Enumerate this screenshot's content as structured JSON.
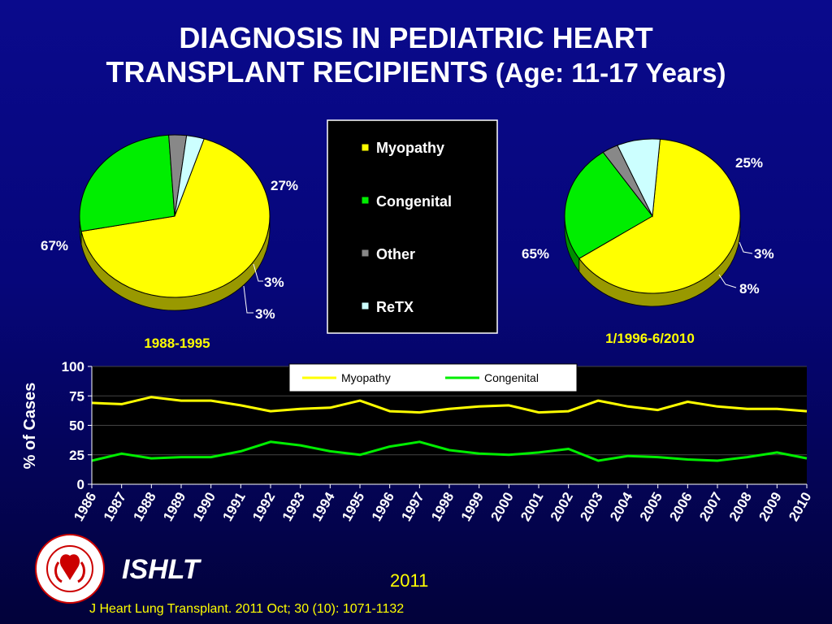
{
  "title_line1": "DIAGNOSIS IN PEDIATRIC HEART",
  "title_line2_main": "TRANSPLANT RECIPIENTS",
  "title_line2_sub": " (Age: 11-17 Years)",
  "chart_data": [
    {
      "type": "pie",
      "title": "1988-1995",
      "slices": [
        {
          "name": "Myopathy",
          "value": 67,
          "label": "67%"
        },
        {
          "name": "Congenital",
          "value": 27,
          "label": "27%"
        },
        {
          "name": "Other",
          "value": 3,
          "label": "3%"
        },
        {
          "name": "ReTX",
          "value": 3,
          "label": "3%"
        }
      ]
    },
    {
      "type": "pie",
      "title": "1/1996-6/2010",
      "slices": [
        {
          "name": "Myopathy",
          "value": 65,
          "label": "65%"
        },
        {
          "name": "Congenital",
          "value": 25,
          "label": "25%"
        },
        {
          "name": "Other",
          "value": 3,
          "label": "3%"
        },
        {
          "name": "ReTX",
          "value": 8,
          "label": "8%"
        }
      ]
    },
    {
      "type": "line",
      "ylabel": "% of Cases",
      "ylim": [
        0,
        100
      ],
      "yticks": [
        0,
        25,
        50,
        75,
        100
      ],
      "x": [
        "1986",
        "1987",
        "1988",
        "1989",
        "1990",
        "1991",
        "1992",
        "1993",
        "1994",
        "1995",
        "1996",
        "1997",
        "1998",
        "1999",
        "2000",
        "2001",
        "2002",
        "2003",
        "2004",
        "2005",
        "2006",
        "2007",
        "2008",
        "2009",
        "2010"
      ],
      "series": [
        {
          "name": "Myopathy",
          "values": [
            69,
            68,
            74,
            71,
            71,
            67,
            62,
            64,
            65,
            71,
            62,
            61,
            64,
            66,
            67,
            61,
            62,
            71,
            66,
            63,
            70,
            66,
            64,
            64,
            62
          ]
        },
        {
          "name": "Congenital",
          "values": [
            20,
            26,
            22,
            23,
            23,
            28,
            36,
            33,
            28,
            25,
            32,
            36,
            29,
            26,
            25,
            27,
            30,
            20,
            24,
            23,
            21,
            20,
            23,
            27,
            22
          ]
        }
      ],
      "grid": true,
      "legend": "top-center"
    }
  ],
  "legend": {
    "items": [
      {
        "name": "Myopathy",
        "color": "#ffff00"
      },
      {
        "name": "Congenital",
        "color": "#00ee00"
      },
      {
        "name": "Other",
        "color": "#888888"
      },
      {
        "name": "ReTX",
        "color": "#ccffff"
      }
    ]
  },
  "colors": {
    "Myopathy": "#ffff00",
    "Congenital": "#00ee00",
    "Other": "#888888",
    "ReTX": "#ccffff"
  },
  "logo_text": "INTERNATIONAL SOCIETY FOR HEART & LUNG TRANSPLANTATION",
  "org_name": "ISHLT",
  "year": "2011",
  "citation": "J Heart Lung Transplant. 2011 Oct; 30 (10): 1071-1132"
}
